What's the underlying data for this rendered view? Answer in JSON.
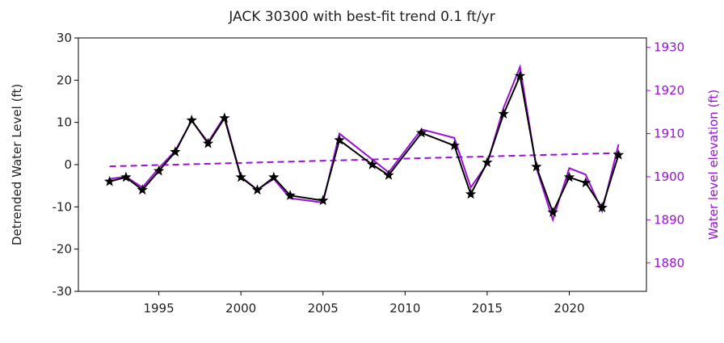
{
  "chart_data": {
    "type": "line",
    "title": "JACK 30300 with best-fit trend 0.1 ft/yr",
    "ylabel": "Detrended Water Level (ft)",
    "y2label": "Water level elevation (ft)",
    "y2color": "#9b10d8",
    "xlim": [
      1990.1,
      2024.7
    ],
    "xticks": [
      1995,
      2000,
      2005,
      2010,
      2015,
      2020
    ],
    "ylim": [
      -30,
      30
    ],
    "yticks": [
      -30,
      -20,
      -10,
      0,
      10,
      20,
      30
    ],
    "y2lim": [
      1873.4,
      1932.2
    ],
    "y2ticks": [
      1880,
      1890,
      1900,
      1910,
      1920,
      1930
    ],
    "series": [
      {
        "name": "Water level elevation",
        "color": "#9b10d8",
        "axis": "y2",
        "x": [
          1992,
          1993,
          1994,
          1995,
          1996,
          1997,
          1998,
          1999,
          2000,
          2001,
          2002,
          2003,
          2005,
          2006,
          2008,
          2009,
          2011,
          2013,
          2014,
          2015,
          2016,
          2017,
          2018,
          2019,
          2020,
          2021,
          2022,
          2023
        ],
        "values": [
          1899.5,
          1900,
          1897.5,
          1902,
          1906,
          1913,
          1908,
          1914,
          1900,
          1897,
          1899.5,
          1895,
          1894,
          1910,
          1904,
          1901,
          1911,
          1909,
          1897.5,
          1903,
          1916,
          1925.5,
          1902,
          1890,
          1902,
          1900.5,
          1892,
          1907.5
        ]
      },
      {
        "name": "Best-fit trend",
        "color": "#9b10d8",
        "axis": "y2",
        "dashed": true,
        "x": [
          1992,
          2023
        ],
        "values": [
          1902.4,
          1905.5
        ]
      },
      {
        "name": "Detrended water level",
        "color": "#000000",
        "marker": "star",
        "x": [
          1992,
          1993,
          1994,
          1995,
          1996,
          1997,
          1998,
          1999,
          2000,
          2001,
          2002,
          2003,
          2005,
          2006,
          2008,
          2009,
          2011,
          2013,
          2014,
          2015,
          2016,
          2017,
          2018,
          2019,
          2020,
          2021,
          2022,
          2023
        ],
        "values": [
          -4,
          -3,
          -6,
          -1.5,
          3,
          10.5,
          5,
          11,
          -3,
          -6,
          -3,
          -7.3,
          -8.5,
          5.8,
          0,
          -2.5,
          7.5,
          4.5,
          -7,
          0.5,
          12,
          21,
          -0.5,
          -11.3,
          -3,
          -4.3,
          -10.2,
          2.3
        ]
      }
    ]
  }
}
